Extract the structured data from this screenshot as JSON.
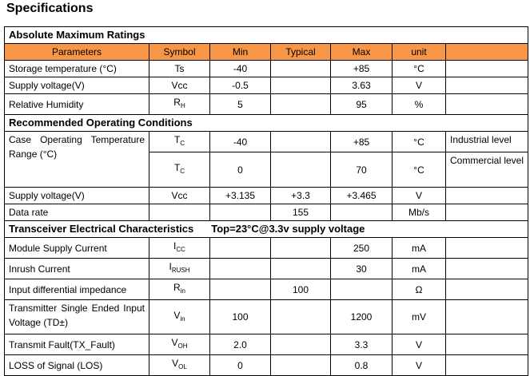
{
  "title": "Specifications",
  "columns": [
    "Parameters",
    "Symbol",
    "Min",
    "Typical",
    "Max",
    "unit"
  ],
  "sections": [
    {
      "title": "Absolute Maximum Ratings",
      "header": true,
      "rows": [
        {
          "parameter": "Storage temperature (°C)",
          "symbol": {
            "main": "Ts"
          },
          "min": "-40",
          "max": "+85",
          "unit": "°C"
        },
        {
          "parameter": "Supply voltage(V)",
          "symbol": {
            "main": "Vcc"
          },
          "min": "-0.5",
          "max": "3.63",
          "unit": "V"
        },
        {
          "parameter": "Relative Humidity",
          "symbol": {
            "main": "R",
            "sub": "H"
          },
          "min": "5",
          "max": "95",
          "unit": "%"
        }
      ]
    },
    {
      "title": "Recommended Operating Conditions",
      "rows": [
        {
          "parameter": "Case Operating Temperature Range (°C)",
          "symbol": {
            "main": "T",
            "sub": "C"
          },
          "min": "-40",
          "max": "+85",
          "unit": "°C",
          "note": "Industrial level"
        },
        {
          "symbol": {
            "main": "T",
            "sub": "C"
          },
          "min": "0",
          "max": "70",
          "unit": "°C",
          "note": "Commercial level"
        },
        {
          "parameter": "Supply voltage(V)",
          "symbol": {
            "main": "Vcc"
          },
          "min": "+3.135",
          "typical": "+3.3",
          "max": "+3.465",
          "unit": "V"
        },
        {
          "parameter": "Data rate",
          "typical": "155",
          "unit": "Mb/s"
        }
      ]
    },
    {
      "title": "Transceiver Electrical Characteristics",
      "condition": "Top=23°C@3.3v supply voltage",
      "rows": [
        {
          "parameter": "Module Supply Current",
          "symbol": {
            "main": "I",
            "sub": "CC"
          },
          "max": "250",
          "unit": "mA"
        },
        {
          "parameter": "Inrush Current",
          "symbol": {
            "main": "I",
            "sub": "RUSH"
          },
          "max": "30",
          "unit": "mA"
        },
        {
          "parameter": "Input differential impedance",
          "symbol": {
            "main": "R",
            "sub": "in"
          },
          "typical": "100",
          "unit": "Ω"
        },
        {
          "parameter": "Transmitter Single Ended Input Voltage (TD±)",
          "symbol": {
            "main": "V",
            "sub": "in"
          },
          "min": "100",
          "max": "1200",
          "unit": "mV"
        },
        {
          "parameter": "Transmit Fault(TX_Fault)",
          "symbol": {
            "main": "V",
            "sub": "OH"
          },
          "min": "2.0",
          "max": "3.3",
          "unit": "V"
        },
        {
          "parameter": "LOSS of Signal (LOS)",
          "symbol": {
            "main": "V",
            "sub": "OL"
          },
          "min": "0",
          "max": "0.8",
          "unit": "V"
        }
      ]
    }
  ]
}
